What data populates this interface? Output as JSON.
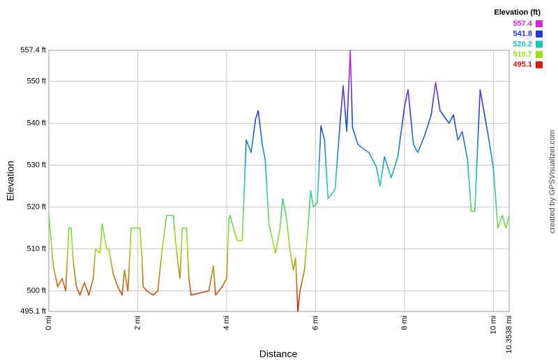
{
  "chart_data": {
    "type": "line",
    "x_label": "Distance",
    "y_label": "Elevation",
    "credit": "created by GPSVisualizer.com",
    "xlim": [
      0,
      10.3538
    ],
    "ylim": [
      495.1,
      557.4
    ],
    "xticks": [
      {
        "value": 0,
        "label": "0 mi"
      },
      {
        "value": 2,
        "label": "2 mi"
      },
      {
        "value": 4,
        "label": "4 mi"
      },
      {
        "value": 6,
        "label": "6 mi"
      },
      {
        "value": 8,
        "label": "8 mi"
      },
      {
        "value": 10,
        "label": "10 mi"
      },
      {
        "value": 10.3538,
        "label": "10.3538 mi"
      }
    ],
    "yticks": [
      {
        "value": 495.1,
        "label": "495.1 ft"
      },
      {
        "value": 500,
        "label": "500 ft"
      },
      {
        "value": 510,
        "label": "510 ft"
      },
      {
        "value": 520,
        "label": "520 ft"
      },
      {
        "value": 530,
        "label": "530 ft"
      },
      {
        "value": 540,
        "label": "540 ft"
      },
      {
        "value": 550,
        "label": "550 ft"
      },
      {
        "value": 557.4,
        "label": "557.4 ft"
      }
    ],
    "grid": true,
    "legend": {
      "title": "Elevation (ft)",
      "values": [
        557.4,
        541.8,
        526.2,
        510.7,
        495.1
      ],
      "colors": [
        "#e020e0",
        "#1c3cd8",
        "#18c8b0",
        "#9ae010",
        "#e01010"
      ]
    },
    "x": [
      0,
      0.1,
      0.2,
      0.3,
      0.38,
      0.45,
      0.5,
      0.55,
      0.62,
      0.7,
      0.8,
      0.9,
      1.0,
      1.05,
      1.15,
      1.2,
      1.3,
      1.35,
      1.45,
      1.55,
      1.65,
      1.7,
      1.78,
      1.85,
      2.05,
      2.1,
      2.12,
      2.2,
      2.35,
      2.45,
      2.55,
      2.65,
      2.8,
      2.85,
      2.9,
      2.95,
      3.0,
      3.1,
      3.15,
      3.2,
      3.4,
      3.6,
      3.7,
      3.75,
      3.9,
      4.0,
      4.05,
      4.08,
      4.15,
      4.24,
      4.35,
      4.44,
      4.55,
      4.65,
      4.71,
      4.8,
      4.87,
      4.95,
      5.1,
      5.2,
      5.26,
      5.35,
      5.42,
      5.5,
      5.55,
      5.6,
      5.65,
      5.75,
      5.82,
      5.89,
      5.95,
      6.04,
      6.12,
      6.2,
      6.28,
      6.36,
      6.44,
      6.55,
      6.62,
      6.7,
      6.78,
      6.83,
      6.95,
      7.06,
      7.2,
      7.37,
      7.45,
      7.55,
      7.7,
      7.85,
      8.0,
      8.08,
      8.2,
      8.3,
      8.45,
      8.6,
      8.7,
      8.8,
      9.0,
      9.1,
      9.2,
      9.3,
      9.42,
      9.5,
      9.58,
      9.7,
      9.8,
      9.9,
      10.0,
      10.1,
      10.2,
      10.28,
      10.3538
    ],
    "values": [
      518,
      506,
      501,
      503,
      500,
      515,
      515,
      507,
      501,
      499,
      502,
      499,
      503,
      510,
      509,
      516,
      510,
      510,
      504,
      501,
      499,
      505,
      500,
      515,
      515,
      507,
      501,
      500,
      499,
      500,
      510,
      518,
      518,
      512,
      507,
      503,
      515,
      515,
      503,
      499,
      499.5,
      500,
      506,
      499,
      501,
      503,
      517,
      518,
      515,
      512,
      512,
      536,
      533,
      541,
      543,
      535,
      531,
      516,
      509,
      515,
      522,
      517,
      510,
      505,
      508,
      495.1,
      500,
      505,
      514,
      524,
      520,
      521,
      539.4,
      536,
      522,
      523,
      524.4,
      540,
      549,
      538,
      557.4,
      539,
      535,
      534,
      533,
      529.5,
      525,
      532,
      527,
      532,
      544,
      548,
      535,
      533,
      537,
      542,
      549.7,
      543,
      540,
      542,
      536,
      538,
      531,
      519,
      519,
      548,
      542,
      536,
      529,
      515,
      518,
      515,
      518
    ]
  }
}
